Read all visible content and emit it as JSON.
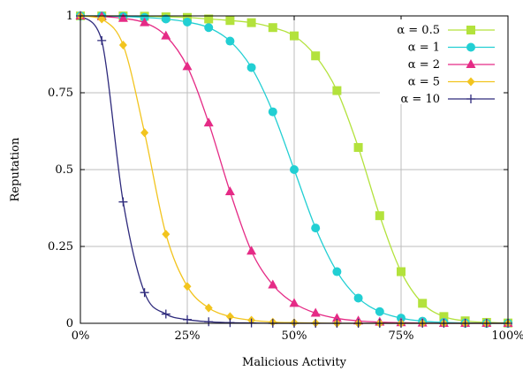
{
  "chart_data": {
    "type": "line",
    "title": "",
    "xlabel": "Malicious Activity",
    "ylabel": "Reputation",
    "xlim": [
      0,
      1
    ],
    "ylim": [
      0,
      1
    ],
    "x_ticks": [
      {
        "value": 0,
        "label": "0%"
      },
      {
        "value": 0.25,
        "label": "25%"
      },
      {
        "value": 0.5,
        "label": "50%"
      },
      {
        "value": 0.75,
        "label": "75%"
      },
      {
        "value": 1,
        "label": "100%"
      }
    ],
    "y_ticks": [
      {
        "value": 0,
        "label": "0"
      },
      {
        "value": 0.25,
        "label": "0.25"
      },
      {
        "value": 0.5,
        "label": "0.5"
      },
      {
        "value": 0.75,
        "label": "0.75"
      },
      {
        "value": 1,
        "label": "1"
      }
    ],
    "grid": true,
    "legend_position": "top-right",
    "series": [
      {
        "name": "α = 0.5",
        "alpha": 0.5,
        "color": "#b3e23c",
        "marker": "square",
        "x": [
          0,
          0.05,
          0.1,
          0.15,
          0.2,
          0.25,
          0.3,
          0.35,
          0.4,
          0.45,
          0.5,
          0.55,
          0.6,
          0.65,
          0.7,
          0.75,
          0.8,
          0.85,
          0.9,
          0.95,
          1.0
        ],
        "y": [
          1.0,
          1.0,
          1.0,
          0.999,
          0.997,
          0.995,
          0.99,
          0.985,
          0.978,
          0.962,
          0.935,
          0.87,
          0.757,
          0.572,
          0.35,
          0.168,
          0.065,
          0.022,
          0.008,
          0.003,
          0.001
        ]
      },
      {
        "name": "α = 1",
        "alpha": 1,
        "color": "#22cfd3",
        "marker": "circle",
        "x": [
          0,
          0.05,
          0.1,
          0.15,
          0.2,
          0.25,
          0.3,
          0.35,
          0.4,
          0.45,
          0.5,
          0.55,
          0.6,
          0.65,
          0.7,
          0.75,
          0.8,
          0.85,
          0.9,
          0.95,
          1.0
        ],
        "y": [
          1.0,
          1.0,
          0.998,
          0.995,
          0.99,
          0.98,
          0.962,
          0.918,
          0.832,
          0.688,
          0.5,
          0.31,
          0.168,
          0.082,
          0.038,
          0.017,
          0.007,
          0.003,
          0.001,
          0.0,
          0.0
        ]
      },
      {
        "name": "α = 2",
        "alpha": 2,
        "color": "#e52b86",
        "marker": "triangle",
        "x": [
          0,
          0.05,
          0.1,
          0.15,
          0.2,
          0.25,
          0.3,
          0.35,
          0.4,
          0.45,
          0.5,
          0.55,
          0.6,
          0.65,
          0.7,
          0.75,
          0.8,
          0.85,
          0.9,
          0.95,
          1.0
        ],
        "y": [
          1.0,
          0.998,
          0.992,
          0.978,
          0.935,
          0.835,
          0.652,
          0.428,
          0.235,
          0.125,
          0.065,
          0.033,
          0.016,
          0.008,
          0.004,
          0.002,
          0.001,
          0.0,
          0.0,
          0.0,
          0.0
        ]
      },
      {
        "name": "α = 5",
        "alpha": 5,
        "color": "#f2c41e",
        "marker": "diamond",
        "x": [
          0,
          0.05,
          0.1,
          0.15,
          0.2,
          0.25,
          0.3,
          0.35,
          0.4,
          0.45,
          0.5,
          0.55,
          0.6,
          0.65,
          0.7,
          0.75,
          0.8,
          0.85,
          0.9,
          0.95,
          1.0
        ],
        "y": [
          1.0,
          0.99,
          0.905,
          0.62,
          0.29,
          0.12,
          0.05,
          0.022,
          0.01,
          0.004,
          0.002,
          0.001,
          0.0,
          0.0,
          0.0,
          0.0,
          0.0,
          0.0,
          0.0,
          0.0,
          0.0
        ]
      },
      {
        "name": "α = 10",
        "alpha": 10,
        "color": "#2e2a7c",
        "marker": "plus",
        "x": [
          0,
          0.05,
          0.1,
          0.15,
          0.2,
          0.25,
          0.3,
          0.35,
          0.4,
          0.45,
          0.5,
          0.55,
          0.6,
          0.65,
          0.7,
          0.75,
          0.8,
          0.85,
          0.9,
          0.95,
          1.0
        ],
        "y": [
          1.0,
          0.92,
          0.395,
          0.1,
          0.03,
          0.012,
          0.005,
          0.002,
          0.001,
          0.0,
          0.0,
          0.0,
          0.0,
          0.0,
          0.0,
          0.0,
          0.0,
          0.0,
          0.0,
          0.0,
          0.0
        ]
      }
    ]
  }
}
